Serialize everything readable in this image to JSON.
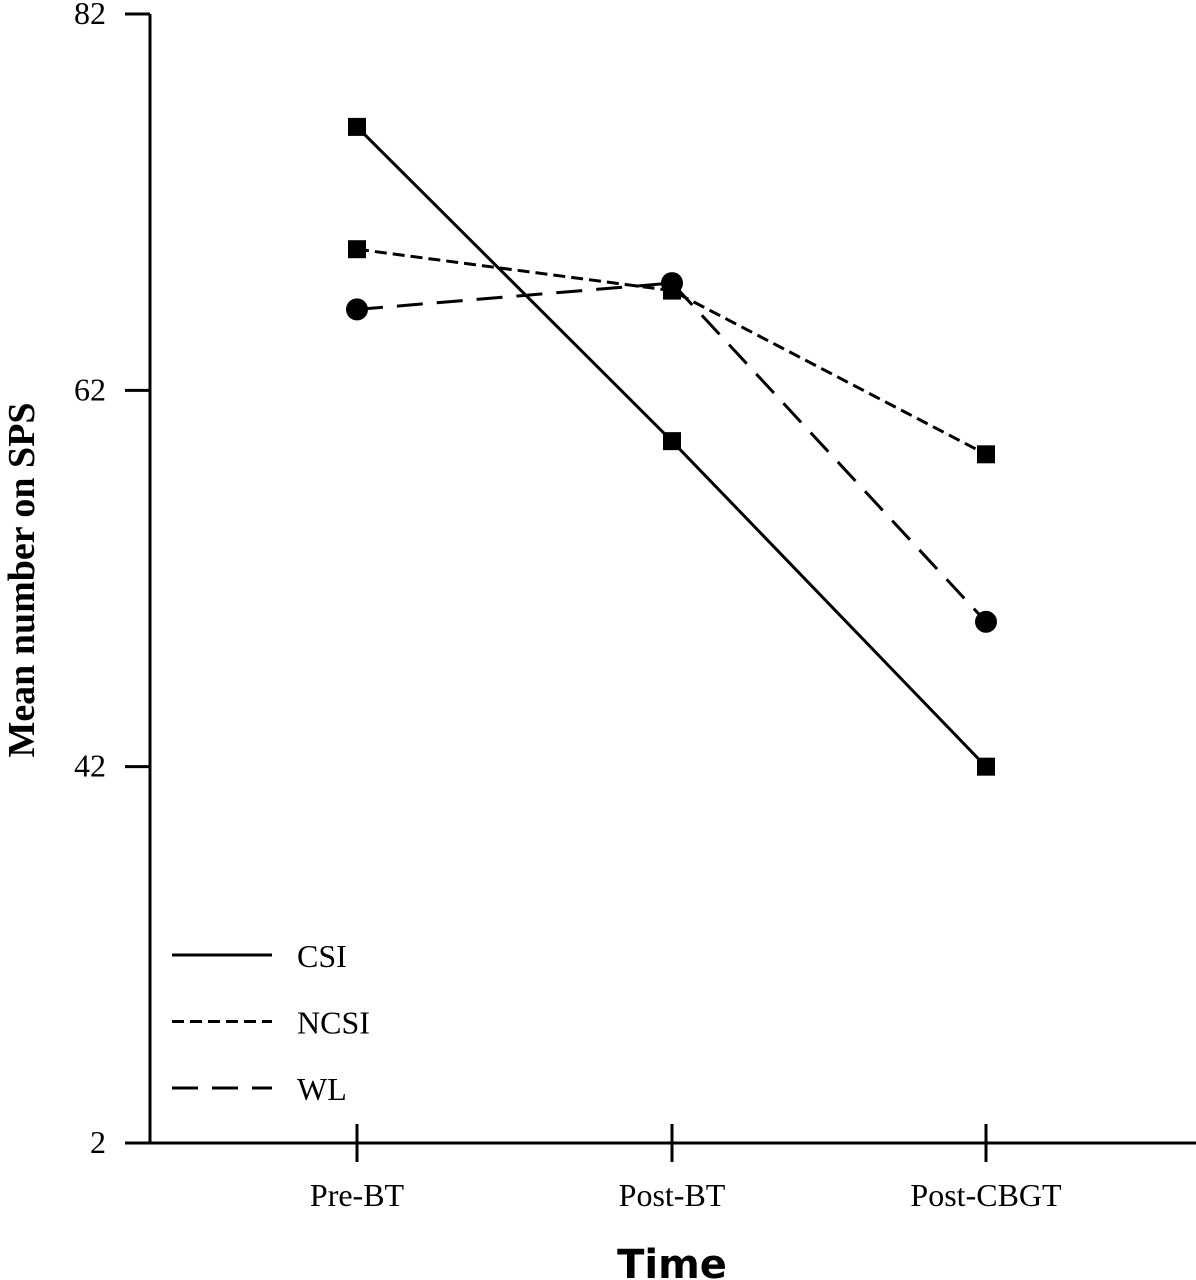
{
  "chart_data": {
    "type": "line",
    "title": "",
    "xlabel": "Time",
    "ylabel": "Mean number on SPS",
    "categories": [
      "Pre-BT",
      "Post-BT",
      "Post-CBGT"
    ],
    "yticks": [
      2,
      42,
      62,
      82
    ],
    "ylim": [
      2,
      82
    ],
    "grid": false,
    "legend_placement": "bottom-left",
    "series": [
      {
        "name": "CSI",
        "style": "solid",
        "marker": "square",
        "values": [
          76.0,
          59.3,
          42.0
        ]
      },
      {
        "name": "NCSI",
        "style": "short-dash",
        "marker": "square",
        "values": [
          69.5,
          67.3,
          58.6
        ]
      },
      {
        "name": "WL",
        "style": "long-dash",
        "marker": "circle",
        "values": [
          66.3,
          67.7,
          49.7
        ]
      }
    ],
    "colors": {
      "line": "#000000",
      "background": "#ffffff"
    }
  }
}
